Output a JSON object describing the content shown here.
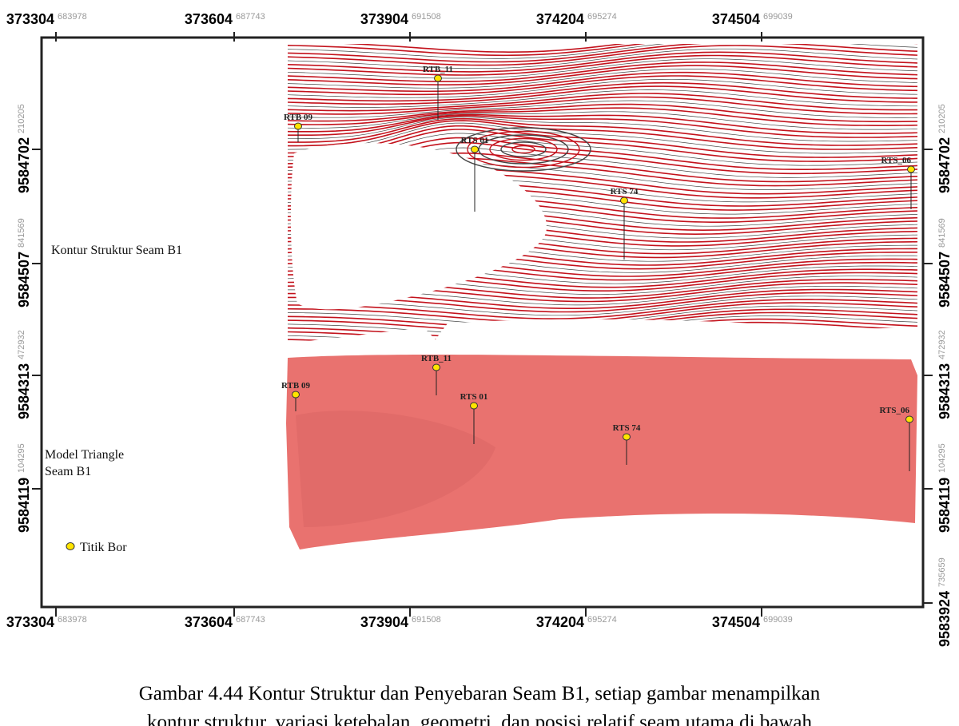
{
  "map": {
    "x_ticks": [
      {
        "main": "373304",
        "sub": "683978"
      },
      {
        "main": "373604",
        "sub": "687743"
      },
      {
        "main": "373904",
        "sub": "691508"
      },
      {
        "main": "374204",
        "sub": "695274"
      },
      {
        "main": "374504",
        "sub": "699039"
      }
    ],
    "y_ticks": [
      {
        "main": "9584702",
        "sub": "210205"
      },
      {
        "main": "9584507",
        "sub": "841569"
      },
      {
        "main": "9584313",
        "sub": "472932"
      },
      {
        "main": "9584119",
        "sub": "104295"
      },
      {
        "main": "9583924",
        "sub": "735659"
      }
    ],
    "upper_wells": [
      "RTB_11",
      "RTB 09",
      "RTS 01",
      "RTS 74",
      "RTS_06"
    ],
    "lower_wells": [
      "RTB_11",
      "RTB 09",
      "RTS 01",
      "RTS 74",
      "RTS_06"
    ],
    "labels": {
      "contour": "Kontur Struktur Seam B1",
      "model_line1": "Model Triangle",
      "model_line2": "Seam B1",
      "legend_borehole": "Titik Bor"
    }
  },
  "caption": {
    "line1": "Gambar 4.44 Kontur Struktur dan Penyebaran Seam B1, setiap gambar menampilkan",
    "line2": "kontur struktur, variasi ketebalan, geometri, dan posisi relatif seam utama di bawah"
  }
}
